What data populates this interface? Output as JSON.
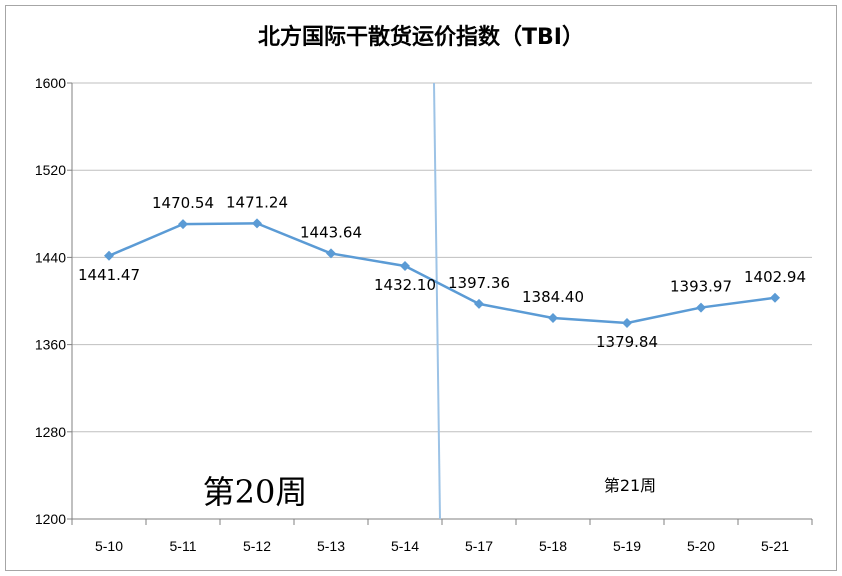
{
  "chart_data": {
    "type": "line",
    "title": "北方国际干散货运价指数（TBI）",
    "categories": [
      "5-10",
      "5-11",
      "5-12",
      "5-13",
      "5-14",
      "5-17",
      "5-18",
      "5-19",
      "5-20",
      "5-21"
    ],
    "series": [
      {
        "values": [
          1441.47,
          1470.54,
          1471.24,
          1443.64,
          1432.1,
          1397.36,
          1384.4,
          1379.84,
          1393.97,
          1402.94
        ],
        "labels": [
          "1441.47",
          "1470.54",
          "1471.24",
          "1443.64",
          "1432.10",
          "1397.36",
          "1384.40",
          "1379.84",
          "1393.97",
          "1402.94"
        ]
      }
    ],
    "ylim": [
      1200,
      1600
    ],
    "yticks": [
      1200,
      1280,
      1360,
      1440,
      1520,
      1600
    ],
    "grid": true,
    "legend": "none",
    "annotations": {
      "week20": "第20周",
      "week21": "第21周"
    },
    "colors": {
      "series": "#5b9bd5",
      "divider": "#9dc3e6",
      "grid": "#bfbfbf"
    }
  }
}
